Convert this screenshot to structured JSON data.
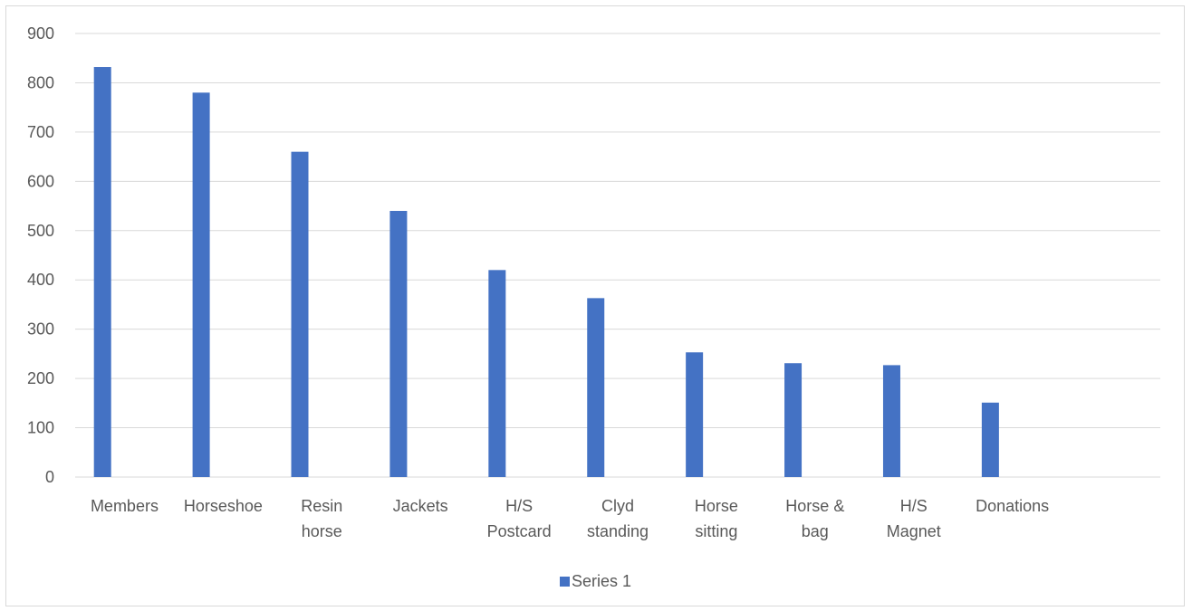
{
  "chart_data": {
    "type": "bar",
    "categories": [
      [
        "Members"
      ],
      [
        "Horseshoe"
      ],
      [
        "Resin",
        "horse"
      ],
      [
        "Jackets"
      ],
      [
        "H/S",
        "Postcard"
      ],
      [
        "Clyd",
        "standing"
      ],
      [
        "Horse",
        "sitting"
      ],
      [
        "Horse &",
        "bag"
      ],
      [
        "H/S",
        "Magnet"
      ],
      [
        "Donations"
      ],
      [
        ""
      ]
    ],
    "series": [
      {
        "name": "Series 1",
        "values": [
          832,
          780,
          660,
          540,
          420,
          363,
          253,
          231,
          227,
          151,
          null
        ]
      }
    ],
    "title": "",
    "xlabel": "",
    "ylabel": "",
    "ylim": [
      0,
      900
    ],
    "yticks": [
      0,
      100,
      200,
      300,
      400,
      500,
      600,
      700,
      800,
      900
    ],
    "grid": true,
    "legend_position": "bottom",
    "bar_color": "#4472c4",
    "grid_color": "#d9d9d9",
    "text_color": "#595959"
  }
}
